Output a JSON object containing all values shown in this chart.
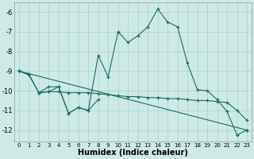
{
  "xlabel": "Humidex (Indice chaleur)",
  "background_color": "#ceeae7",
  "grid_color": "#aacfcc",
  "line_color": "#1a6b60",
  "series": [
    {
      "x": [
        0,
        1,
        2,
        3,
        4,
        5,
        6,
        7,
        8,
        9,
        10,
        11,
        12,
        13,
        14,
        15,
        16,
        17,
        18,
        19,
        20,
        21,
        22,
        23
      ],
      "y": [
        -9.0,
        -9.2,
        -10.1,
        -9.8,
        -9.8,
        -11.15,
        -10.85,
        -11.0,
        -8.2,
        -9.3,
        -7.0,
        -7.55,
        -7.2,
        -6.75,
        -5.85,
        -6.5,
        -6.75,
        -8.6,
        -9.95,
        -10.0,
        -10.45,
        -11.05,
        -12.25,
        -12.0
      ]
    },
    {
      "x": [
        0,
        1,
        2,
        3,
        4,
        5,
        6,
        7,
        8,
        9,
        10,
        11,
        12,
        13,
        14,
        15,
        16,
        17,
        18,
        19,
        20,
        21,
        22,
        23
      ],
      "y": [
        -9.0,
        -9.15,
        -10.1,
        -10.05,
        -10.05,
        -10.1,
        -10.1,
        -10.1,
        -10.15,
        -10.2,
        -10.25,
        -10.3,
        -10.3,
        -10.35,
        -10.35,
        -10.4,
        -10.4,
        -10.45,
        -10.5,
        -10.5,
        -10.55,
        -10.6,
        -11.0,
        -11.5
      ]
    },
    {
      "x": [
        0,
        23
      ],
      "y": [
        -9.0,
        -12.0
      ]
    },
    {
      "x": [
        2,
        3,
        4,
        5,
        6,
        7,
        8
      ],
      "y": [
        -10.1,
        -10.05,
        -9.8,
        -11.15,
        -10.85,
        -11.0,
        -10.45
      ]
    }
  ],
  "ylim": [
    -12.6,
    -5.5
  ],
  "xlim": [
    -0.5,
    23.5
  ],
  "yticks": [
    -12,
    -11,
    -10,
    -9,
    -8,
    -7,
    -6
  ],
  "xticks": [
    0,
    1,
    2,
    3,
    4,
    5,
    6,
    7,
    8,
    9,
    10,
    11,
    12,
    13,
    14,
    15,
    16,
    17,
    18,
    19,
    20,
    21,
    22,
    23
  ],
  "marker": "+"
}
